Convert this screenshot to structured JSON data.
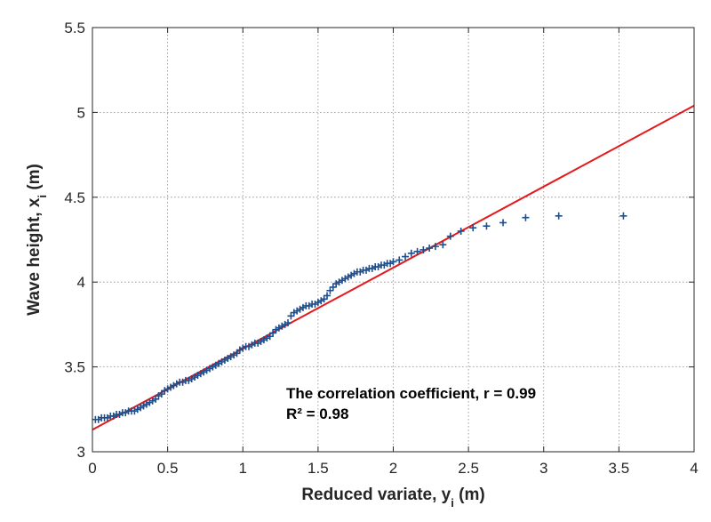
{
  "chart_data": {
    "type": "scatter",
    "xlabel": "Reduced variate, y",
    "xlabel_sub": "i",
    "xlabel_unit": " (m)",
    "ylabel": "Wave height, x",
    "ylabel_sub": "i",
    "ylabel_unit": " (m)",
    "xlim": [
      0,
      4
    ],
    "ylim": [
      3,
      5.5
    ],
    "xticks": [
      0,
      0.5,
      1,
      1.5,
      2,
      2.5,
      3,
      3.5,
      4
    ],
    "xtick_labels": [
      "0",
      "0.5",
      "1",
      "1.5",
      "2",
      "2.5",
      "3",
      "3.5",
      "4"
    ],
    "yticks": [
      3,
      3.5,
      4,
      4.5,
      5,
      5.5
    ],
    "ytick_labels": [
      "3",
      "3.5",
      "4",
      "4.5",
      "5",
      "5.5"
    ],
    "grid": true,
    "annotations": [
      "The correlation coefficient, r = 0.99",
      "R² = 0.98"
    ],
    "fit_line": {
      "color": "#e31a1c",
      "x": [
        0,
        4
      ],
      "y": [
        3.13,
        5.04
      ]
    },
    "marker_color": "#1f4e8c",
    "series": [
      {
        "marker": "+",
        "points": [
          [
            0.02,
            3.19
          ],
          [
            0.04,
            3.19
          ],
          [
            0.06,
            3.2
          ],
          [
            0.08,
            3.2
          ],
          [
            0.1,
            3.2
          ],
          [
            0.12,
            3.21
          ],
          [
            0.14,
            3.21
          ],
          [
            0.16,
            3.22
          ],
          [
            0.18,
            3.22
          ],
          [
            0.2,
            3.23
          ],
          [
            0.22,
            3.23
          ],
          [
            0.24,
            3.24
          ],
          [
            0.26,
            3.24
          ],
          [
            0.28,
            3.24
          ],
          [
            0.3,
            3.25
          ],
          [
            0.32,
            3.26
          ],
          [
            0.34,
            3.27
          ],
          [
            0.36,
            3.28
          ],
          [
            0.38,
            3.29
          ],
          [
            0.4,
            3.3
          ],
          [
            0.42,
            3.31
          ],
          [
            0.44,
            3.33
          ],
          [
            0.46,
            3.34
          ],
          [
            0.48,
            3.36
          ],
          [
            0.5,
            3.37
          ],
          [
            0.52,
            3.38
          ],
          [
            0.54,
            3.39
          ],
          [
            0.56,
            3.4
          ],
          [
            0.58,
            3.41
          ],
          [
            0.6,
            3.41
          ],
          [
            0.62,
            3.42
          ],
          [
            0.64,
            3.42
          ],
          [
            0.66,
            3.43
          ],
          [
            0.68,
            3.44
          ],
          [
            0.7,
            3.45
          ],
          [
            0.72,
            3.46
          ],
          [
            0.74,
            3.47
          ],
          [
            0.76,
            3.48
          ],
          [
            0.78,
            3.49
          ],
          [
            0.8,
            3.5
          ],
          [
            0.82,
            3.51
          ],
          [
            0.84,
            3.52
          ],
          [
            0.86,
            3.53
          ],
          [
            0.88,
            3.54
          ],
          [
            0.9,
            3.55
          ],
          [
            0.92,
            3.56
          ],
          [
            0.94,
            3.57
          ],
          [
            0.96,
            3.58
          ],
          [
            0.98,
            3.6
          ],
          [
            1.0,
            3.61
          ],
          [
            1.02,
            3.62
          ],
          [
            1.04,
            3.62
          ],
          [
            1.06,
            3.63
          ],
          [
            1.08,
            3.64
          ],
          [
            1.1,
            3.64
          ],
          [
            1.12,
            3.65
          ],
          [
            1.14,
            3.66
          ],
          [
            1.16,
            3.67
          ],
          [
            1.18,
            3.68
          ],
          [
            1.2,
            3.7
          ],
          [
            1.22,
            3.72
          ],
          [
            1.24,
            3.73
          ],
          [
            1.26,
            3.74
          ],
          [
            1.28,
            3.75
          ],
          [
            1.3,
            3.76
          ],
          [
            1.32,
            3.8
          ],
          [
            1.34,
            3.82
          ],
          [
            1.36,
            3.83
          ],
          [
            1.38,
            3.84
          ],
          [
            1.4,
            3.85
          ],
          [
            1.42,
            3.86
          ],
          [
            1.44,
            3.86
          ],
          [
            1.46,
            3.87
          ],
          [
            1.48,
            3.87
          ],
          [
            1.5,
            3.88
          ],
          [
            1.52,
            3.89
          ],
          [
            1.54,
            3.9
          ],
          [
            1.56,
            3.92
          ],
          [
            1.58,
            3.95
          ],
          [
            1.6,
            3.97
          ],
          [
            1.62,
            3.99
          ],
          [
            1.64,
            4.0
          ],
          [
            1.66,
            4.01
          ],
          [
            1.68,
            4.02
          ],
          [
            1.7,
            4.03
          ],
          [
            1.72,
            4.04
          ],
          [
            1.74,
            4.05
          ],
          [
            1.76,
            4.06
          ],
          [
            1.78,
            4.06
          ],
          [
            1.8,
            4.07
          ],
          [
            1.82,
            4.07
          ],
          [
            1.84,
            4.08
          ],
          [
            1.86,
            4.08
          ],
          [
            1.88,
            4.09
          ],
          [
            1.9,
            4.09
          ],
          [
            1.92,
            4.1
          ],
          [
            1.94,
            4.1
          ],
          [
            1.96,
            4.11
          ],
          [
            1.98,
            4.11
          ],
          [
            2.0,
            4.12
          ],
          [
            2.04,
            4.13
          ],
          [
            2.08,
            4.15
          ],
          [
            2.12,
            4.17
          ],
          [
            2.16,
            4.18
          ],
          [
            2.2,
            4.19
          ],
          [
            2.24,
            4.2
          ],
          [
            2.28,
            4.21
          ],
          [
            2.33,
            4.22
          ],
          [
            2.38,
            4.27
          ],
          [
            2.45,
            4.3
          ],
          [
            2.53,
            4.32
          ],
          [
            2.62,
            4.33
          ],
          [
            2.73,
            4.35
          ],
          [
            2.88,
            4.38
          ],
          [
            3.1,
            4.39
          ],
          [
            3.53,
            4.39
          ]
        ]
      }
    ]
  }
}
